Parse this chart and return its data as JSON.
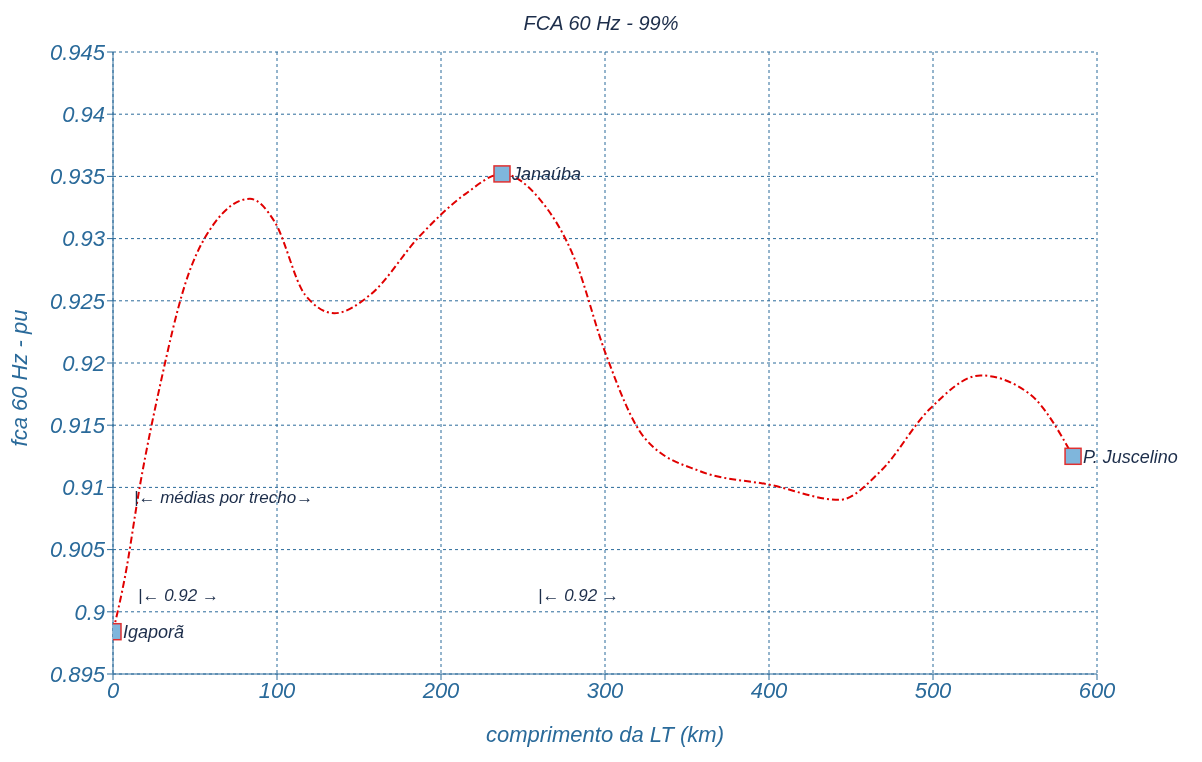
{
  "chart_data": {
    "type": "line",
    "title": "FCA 60 Hz - 99%",
    "xlabel": "comprimento da LT (km)",
    "ylabel": "fca 60 Hz - pu",
    "series": [
      {
        "color": "#e00000",
        "marker": "none",
        "line_style": "dashed",
        "x": [
          0,
          7.3,
          16.5,
          28.7,
          43.9,
          62.2,
          83.5,
          98.8,
          117,
          135,
          157,
          187,
          215,
          237.2,
          260,
          282,
          300,
          324,
          358,
          401,
          443,
          468,
          498,
          529,
          559,
          585.4
        ],
        "values": [
          0.8984,
          0.9028,
          0.9102,
          0.9182,
          0.9263,
          0.9313,
          0.9332,
          0.9313,
          0.9255,
          0.924,
          0.9255,
          0.9302,
          0.9336,
          0.9352,
          0.9332,
          0.9282,
          0.9209,
          0.914,
          0.9113,
          0.9102,
          0.909,
          0.9113,
          0.9163,
          0.919,
          0.9175,
          0.9125
        ]
      },
      {
        "type": "scatter",
        "color": "#7fb6dc",
        "marker": "square",
        "x": [
          0,
          237.2,
          585.4
        ],
        "values": [
          0.8984,
          0.9352,
          0.9125
        ]
      }
    ],
    "annotations": [
      {
        "text": "Igaporã",
        "x": 0,
        "y": 0.8984
      },
      {
        "text": "Janaúba",
        "x": 237.2,
        "y": 0.9352
      },
      {
        "text": "P. Juscelino",
        "x": 585.4,
        "y": 0.9125
      },
      "|← médias por trecho→",
      "|← 0.92 →",
      "|← 0.92 →"
    ],
    "xlim": [
      0,
      600
    ],
    "xticks": [
      0,
      100,
      200,
      300,
      400,
      500,
      600
    ],
    "ylim": [
      0.895,
      0.945
    ],
    "yticks": [
      0.895,
      0.9,
      0.905,
      0.91,
      0.915,
      0.92,
      0.925,
      0.93,
      0.935,
      0.94,
      0.945
    ],
    "grid": true,
    "legend": false
  }
}
